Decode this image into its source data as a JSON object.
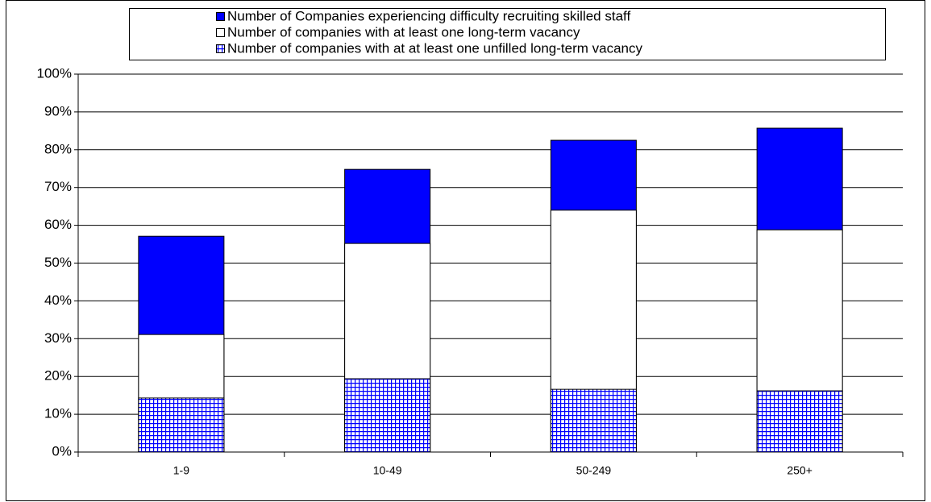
{
  "chart_data": {
    "type": "bar",
    "barmode": "overlay",
    "categories": [
      "1-9",
      "10-49",
      "50-249",
      "250+"
    ],
    "series": [
      {
        "name": "Number of Companies experiencing difficulty recruiting skilled staff",
        "color": "#0000ff",
        "values": [
          57.1,
          74.8,
          82.5,
          85.7
        ]
      },
      {
        "name": "Number of companies with at least one long-term vacancy",
        "color": "#ffffff",
        "values": [
          31.1,
          55.2,
          64.0,
          58.8
        ]
      },
      {
        "name": "Number of companies with at at least one unfilled long-term vacancy",
        "color": "#0000ff",
        "pattern": "grid",
        "values": [
          14.3,
          19.4,
          16.6,
          16.2
        ]
      }
    ],
    "ylim": [
      0,
      100
    ],
    "yticks": [
      {
        "value": 0,
        "label": "0%"
      },
      {
        "value": 10,
        "label": "10%"
      },
      {
        "value": 20,
        "label": "20%"
      },
      {
        "value": 30,
        "label": "30%"
      },
      {
        "value": 40,
        "label": "40%"
      },
      {
        "value": 50,
        "label": "50%"
      },
      {
        "value": 60,
        "label": "60%"
      },
      {
        "value": 70,
        "label": "70%"
      },
      {
        "value": 80,
        "label": "80%"
      },
      {
        "value": 90,
        "label": "90%"
      },
      {
        "value": 100,
        "label": "100%"
      }
    ],
    "grid": true,
    "legend": "top"
  }
}
